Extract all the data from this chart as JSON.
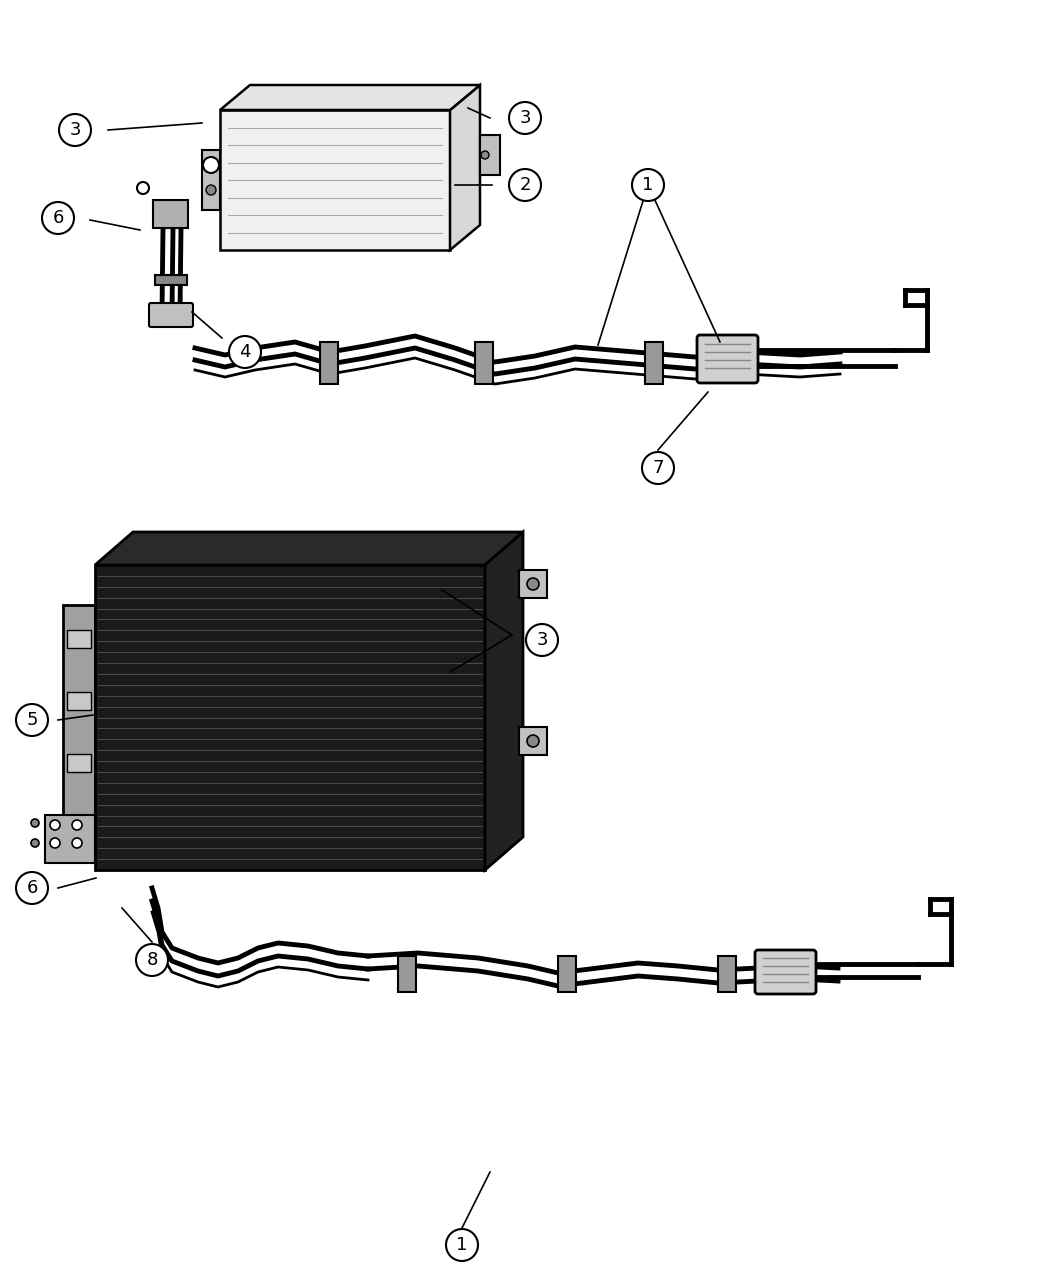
{
  "background_color": "#ffffff",
  "line_color": "#000000",
  "lw_thick": 3.5,
  "lw_med": 2.0,
  "lw_thin": 1.2
}
